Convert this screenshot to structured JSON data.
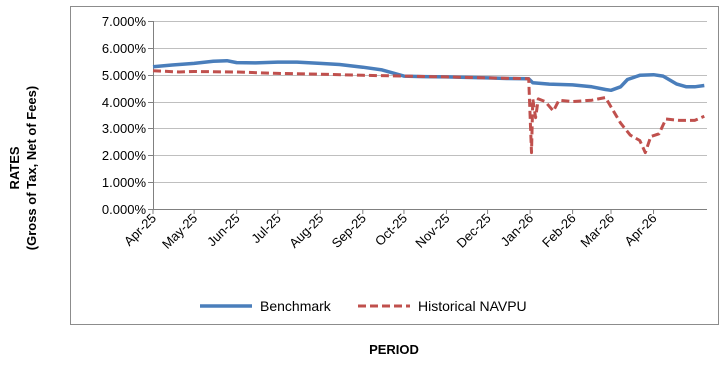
{
  "chart_data": {
    "type": "line",
    "xlabel": "PERIOD",
    "ylabel_line1": "RATES",
    "ylabel_line2": "(Gross of Tax, Net of Fees)",
    "yticks": [
      "0.000%",
      "1.000%",
      "2.000%",
      "3.000%",
      "4.000%",
      "5.000%",
      "6.000%",
      "7.000%"
    ],
    "ylim": [
      0,
      7
    ],
    "xlim": [
      "2025-04-01",
      "2026-05-10"
    ],
    "categories": [
      "Apr-25",
      "May-25",
      "Jun-25",
      "Jul-25",
      "Aug-25",
      "Sep-25",
      "Oct-25",
      "Nov-25",
      "Dec-25",
      "Jan-26",
      "Feb-26",
      "Mar-26",
      "Apr-26"
    ],
    "category_dates": [
      "2025-04-01",
      "2025-05-01",
      "2025-06-01",
      "2025-07-01",
      "2025-08-01",
      "2025-09-01",
      "2025-10-01",
      "2025-11-01",
      "2025-12-01",
      "2026-01-01",
      "2026-02-01",
      "2026-03-01",
      "2026-04-01"
    ],
    "grid": "horizontal",
    "legend_position": "bottom",
    "series": [
      {
        "name": "Benchmark",
        "color": "#4A7EBB",
        "style": "solid",
        "points": [
          [
            "2025-04-01",
            5.3
          ],
          [
            "2025-04-15",
            5.36
          ],
          [
            "2025-05-01",
            5.42
          ],
          [
            "2025-05-15",
            5.5
          ],
          [
            "2025-05-25",
            5.52
          ],
          [
            "2025-06-01",
            5.45
          ],
          [
            "2025-06-15",
            5.44
          ],
          [
            "2025-07-01",
            5.47
          ],
          [
            "2025-07-15",
            5.47
          ],
          [
            "2025-08-01",
            5.42
          ],
          [
            "2025-08-15",
            5.38
          ],
          [
            "2025-09-01",
            5.28
          ],
          [
            "2025-09-15",
            5.18
          ],
          [
            "2025-10-01",
            4.95
          ],
          [
            "2025-10-15",
            4.93
          ],
          [
            "2025-11-01",
            4.92
          ],
          [
            "2025-11-15",
            4.9
          ],
          [
            "2025-12-01",
            4.88
          ],
          [
            "2025-12-15",
            4.86
          ],
          [
            "2025-12-31",
            4.85
          ],
          [
            "2026-01-03",
            4.7
          ],
          [
            "2026-01-15",
            4.65
          ],
          [
            "2026-02-01",
            4.62
          ],
          [
            "2026-02-15",
            4.55
          ],
          [
            "2026-02-25",
            4.45
          ],
          [
            "2026-03-01",
            4.42
          ],
          [
            "2026-03-08",
            4.55
          ],
          [
            "2026-03-13",
            4.82
          ],
          [
            "2026-03-22",
            4.98
          ],
          [
            "2026-04-01",
            5.0
          ],
          [
            "2026-04-08",
            4.95
          ],
          [
            "2026-04-18",
            4.65
          ],
          [
            "2026-04-25",
            4.55
          ],
          [
            "2026-05-01",
            4.55
          ],
          [
            "2026-05-08",
            4.6
          ]
        ]
      },
      {
        "name": "Historical NAVPU",
        "color": "#C0504D",
        "style": "dashed",
        "points": [
          [
            "2025-04-01",
            5.15
          ],
          [
            "2025-04-20",
            5.1
          ],
          [
            "2025-05-01",
            5.12
          ],
          [
            "2025-06-01",
            5.1
          ],
          [
            "2025-07-01",
            5.05
          ],
          [
            "2025-08-01",
            5.02
          ],
          [
            "2025-09-01",
            4.98
          ],
          [
            "2025-10-01",
            4.95
          ],
          [
            "2025-11-01",
            4.92
          ],
          [
            "2025-12-01",
            4.88
          ],
          [
            "2025-12-31",
            4.85
          ],
          [
            "2026-01-02",
            2.1
          ],
          [
            "2026-01-03",
            4.1
          ],
          [
            "2026-01-05",
            3.4
          ],
          [
            "2026-01-07",
            4.1
          ],
          [
            "2026-01-12",
            4.0
          ],
          [
            "2026-01-18",
            3.65
          ],
          [
            "2026-01-22",
            4.05
          ],
          [
            "2026-02-01",
            4.0
          ],
          [
            "2026-02-15",
            4.05
          ],
          [
            "2026-02-25",
            4.15
          ],
          [
            "2026-03-01",
            3.8
          ],
          [
            "2026-03-08",
            3.2
          ],
          [
            "2026-03-15",
            2.75
          ],
          [
            "2026-03-22",
            2.55
          ],
          [
            "2026-03-26",
            2.1
          ],
          [
            "2026-03-30",
            2.7
          ],
          [
            "2026-04-05",
            2.8
          ],
          [
            "2026-04-10",
            3.35
          ],
          [
            "2026-04-20",
            3.3
          ],
          [
            "2026-05-01",
            3.3
          ],
          [
            "2026-05-08",
            3.45
          ]
        ]
      }
    ]
  }
}
